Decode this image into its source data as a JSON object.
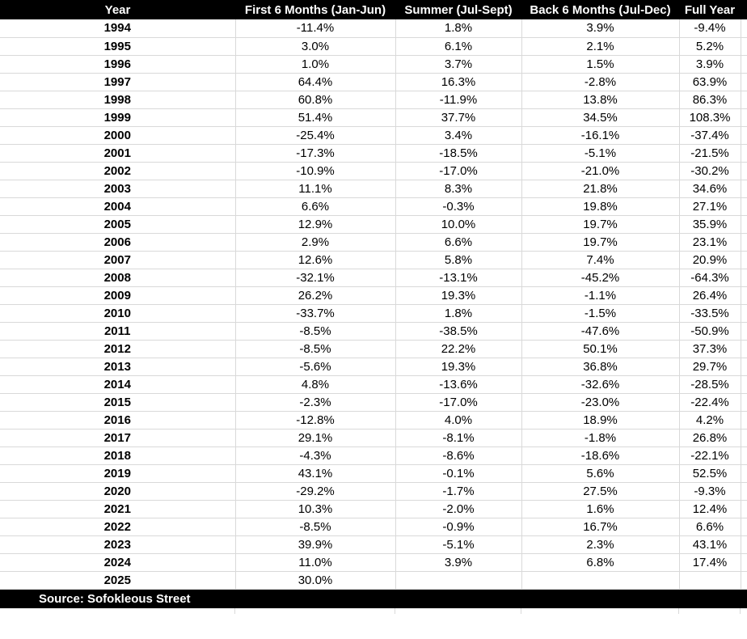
{
  "chart_data": {
    "type": "table",
    "columns": [
      "Year",
      "First 6 Months (Jan-Jun)",
      "Summer (Jul-Sept)",
      "Back 6 Months (Jul-Dec)",
      "Full Year"
    ],
    "rows": [
      [
        "1994",
        "-11.4%",
        "1.8%",
        "3.9%",
        "-9.4%"
      ],
      [
        "1995",
        "3.0%",
        "6.1%",
        "2.1%",
        "5.2%"
      ],
      [
        "1996",
        "1.0%",
        "3.7%",
        "1.5%",
        "3.9%"
      ],
      [
        "1997",
        "64.4%",
        "16.3%",
        "-2.8%",
        "63.9%"
      ],
      [
        "1998",
        "60.8%",
        "-11.9%",
        "13.8%",
        "86.3%"
      ],
      [
        "1999",
        "51.4%",
        "37.7%",
        "34.5%",
        "108.3%"
      ],
      [
        "2000",
        "-25.4%",
        "3.4%",
        "-16.1%",
        "-37.4%"
      ],
      [
        "2001",
        "-17.3%",
        "-18.5%",
        "-5.1%",
        "-21.5%"
      ],
      [
        "2002",
        "-10.9%",
        "-17.0%",
        "-21.0%",
        "-30.2%"
      ],
      [
        "2003",
        "11.1%",
        "8.3%",
        "21.8%",
        "34.6%"
      ],
      [
        "2004",
        "6.6%",
        "-0.3%",
        "19.8%",
        "27.1%"
      ],
      [
        "2005",
        "12.9%",
        "10.0%",
        "19.7%",
        "35.9%"
      ],
      [
        "2006",
        "2.9%",
        "6.6%",
        "19.7%",
        "23.1%"
      ],
      [
        "2007",
        "12.6%",
        "5.8%",
        "7.4%",
        "20.9%"
      ],
      [
        "2008",
        "-32.1%",
        "-13.1%",
        "-45.2%",
        "-64.3%"
      ],
      [
        "2009",
        "26.2%",
        "19.3%",
        "-1.1%",
        "26.4%"
      ],
      [
        "2010",
        "-33.7%",
        "1.8%",
        "-1.5%",
        "-33.5%"
      ],
      [
        "2011",
        "-8.5%",
        "-38.5%",
        "-47.6%",
        "-50.9%"
      ],
      [
        "2012",
        "-8.5%",
        "22.2%",
        "50.1%",
        "37.3%"
      ],
      [
        "2013",
        "-5.6%",
        "19.3%",
        "36.8%",
        "29.7%"
      ],
      [
        "2014",
        "4.8%",
        "-13.6%",
        "-32.6%",
        "-28.5%"
      ],
      [
        "2015",
        "-2.3%",
        "-17.0%",
        "-23.0%",
        "-22.4%"
      ],
      [
        "2016",
        "-12.8%",
        "4.0%",
        "18.9%",
        "4.2%"
      ],
      [
        "2017",
        "29.1%",
        "-8.1%",
        "-1.8%",
        "26.8%"
      ],
      [
        "2018",
        "-4.3%",
        "-8.6%",
        "-18.6%",
        "-22.1%"
      ],
      [
        "2019",
        "43.1%",
        "-0.1%",
        "5.6%",
        "52.5%"
      ],
      [
        "2020",
        "-29.2%",
        "-1.7%",
        "27.5%",
        "-9.3%"
      ],
      [
        "2021",
        "10.3%",
        "-2.0%",
        "1.6%",
        "12.4%"
      ],
      [
        "2022",
        "-8.5%",
        "-0.9%",
        "16.7%",
        "6.6%"
      ],
      [
        "2023",
        "39.9%",
        "-5.1%",
        "2.3%",
        "43.1%"
      ],
      [
        "2024",
        "11.0%",
        "3.9%",
        "6.8%",
        "17.4%"
      ],
      [
        "2025",
        "30.0%",
        "",
        "",
        ""
      ]
    ],
    "source": "Source: Sofokleous Street",
    "layout": {
      "grid": "on",
      "header_position": "top",
      "source_position": "bottom"
    }
  },
  "colors": {
    "header_bg": "#000000",
    "header_text": "#ffffff",
    "grid": "#d9d9d9",
    "row_bg": "#ffffff",
    "text": "#000000"
  }
}
